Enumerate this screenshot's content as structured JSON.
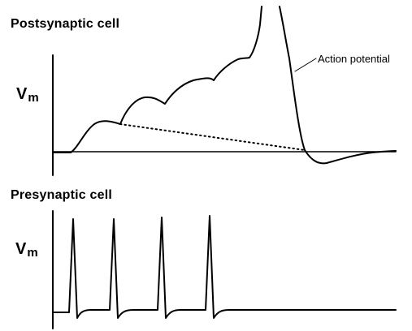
{
  "postsynaptic": {
    "title": "Postsynaptic cell",
    "axis_label": "V",
    "axis_subscript": "m",
    "annotation": "Action potential"
  },
  "presynaptic": {
    "title": "Presynaptic cell",
    "axis_label": "V",
    "axis_subscript": "m"
  },
  "colors": {
    "trace": "#000000",
    "background": "#ffffff"
  }
}
